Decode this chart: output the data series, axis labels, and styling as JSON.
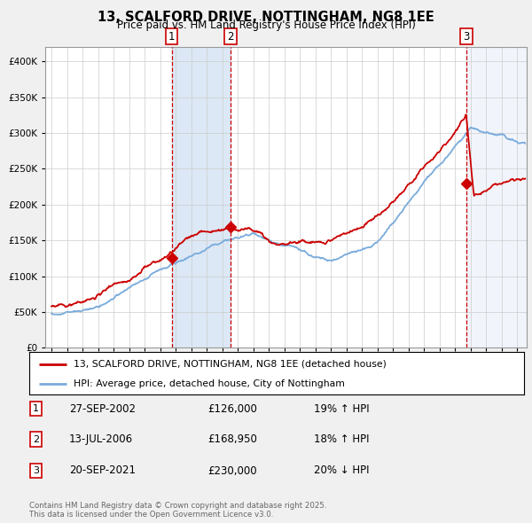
{
  "title": "13, SCALFORD DRIVE, NOTTINGHAM, NG8 1EE",
  "subtitle": "Price paid vs. HM Land Registry's House Price Index (HPI)",
  "legend_line1": "13, SCALFORD DRIVE, NOTTINGHAM, NG8 1EE (detached house)",
  "legend_line2": "HPI: Average price, detached house, City of Nottingham",
  "footer": "Contains HM Land Registry data © Crown copyright and database right 2025.\nThis data is licensed under the Open Government Licence v3.0.",
  "sale_events": [
    {
      "num": 1,
      "date": "27-SEP-2002",
      "price": "£126,000",
      "hpi_pct": "19% ↑ HPI",
      "x_year": 2002.74,
      "sale_price": 126000
    },
    {
      "num": 2,
      "date": "13-JUL-2006",
      "price": "£168,950",
      "hpi_pct": "18% ↑ HPI",
      "x_year": 2006.54,
      "sale_price": 168950
    },
    {
      "num": 3,
      "date": "20-SEP-2021",
      "price": "£230,000",
      "hpi_pct": "20% ↓ HPI",
      "x_year": 2021.72,
      "sale_price": 230000
    }
  ],
  "red_color": "#cc0000",
  "blue_color": "#7aacdc",
  "bg_color": "#f0f0f0",
  "plot_bg_color": "#ffffff",
  "shade_color": "#dce8f5",
  "grid_color": "#cccccc",
  "ylim_max": 420000,
  "ylim_min": 0,
  "xlim_start": 1994.6,
  "xlim_end": 2025.6,
  "ytick_step": 50000
}
